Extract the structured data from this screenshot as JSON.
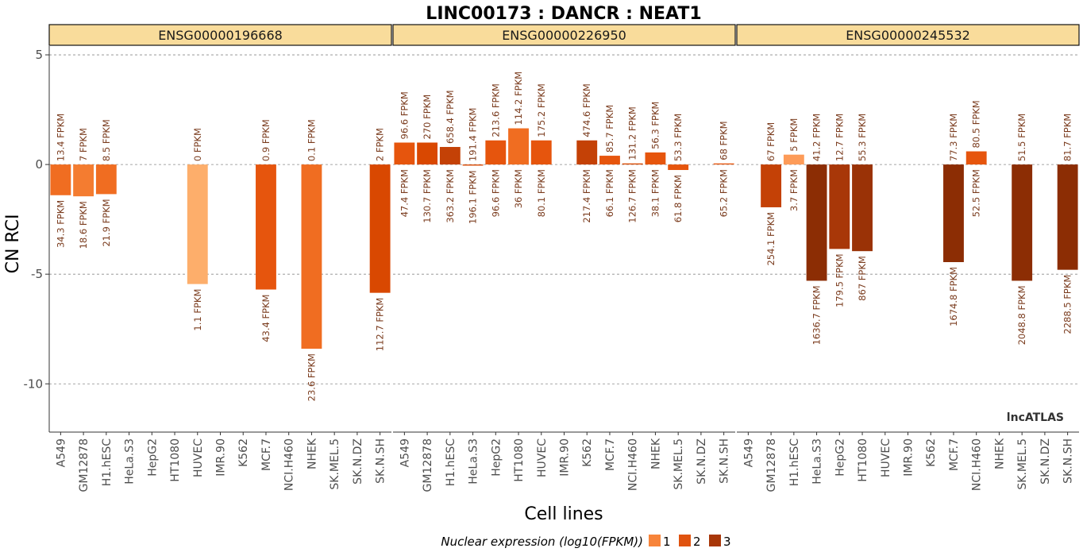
{
  "title": "LINC00173 : DANCR : NEAT1",
  "ylabel": "CN RCI",
  "xlabel": "Cell lines",
  "watermark": "lncATLAS",
  "legend": {
    "title": "Nuclear expression (log10(FPKM))",
    "levels": [
      "1",
      "2",
      "3"
    ],
    "colors": {
      "1": "#f7843a",
      "2": "#e0530f",
      "3": "#a83708"
    }
  },
  "chart_data": {
    "type": "bar",
    "ylim": [
      -12.2,
      5.4
    ],
    "yticks": [
      5,
      0,
      -5,
      -10
    ],
    "grid": "dashed horizontal",
    "categories": [
      "A549",
      "GM12878",
      "H1.hESC",
      "HeLa.S3",
      "HepG2",
      "HT1080",
      "HUVEC",
      "IMR.90",
      "K562",
      "MCF.7",
      "NCI.H460",
      "NHEK",
      "SK.MEL.5",
      "SK.N.DZ",
      "SK.N.SH"
    ],
    "panels": [
      {
        "name": "ENSG00000196668",
        "bars": [
          {
            "category": "A549",
            "value": -1.4,
            "color": "#f06d21",
            "top_label": "13.4 FPKM",
            "bottom_label": "34.3 FPKM"
          },
          {
            "category": "GM12878",
            "value": -1.45,
            "color": "#f47c30",
            "top_label": "7 FPKM",
            "bottom_label": "18.6 FPKM"
          },
          {
            "category": "H1.hESC",
            "value": -1.35,
            "color": "#f06d21",
            "top_label": "8.5 FPKM",
            "bottom_label": "21.9 FPKM"
          },
          {
            "category": "HUVEC",
            "value": -5.45,
            "color": "#fdae6b",
            "top_label": "0 FPKM",
            "bottom_label": "1.1 FPKM"
          },
          {
            "category": "MCF.7",
            "value": -5.7,
            "color": "#e6550d",
            "top_label": "0.9 FPKM",
            "bottom_label": "43.4 FPKM"
          },
          {
            "category": "NHEK",
            "value": -8.4,
            "color": "#f06d21",
            "top_label": "0.1 FPKM",
            "bottom_label": "23.6 FPKM"
          },
          {
            "category": "SK.N.SH",
            "value": -5.85,
            "color": "#d94801",
            "top_label": "2 FPKM",
            "bottom_label": "112.7 FPKM"
          }
        ]
      },
      {
        "name": "ENSG00000226950",
        "bars": [
          {
            "category": "A549",
            "value": 1.0,
            "color": "#e6550d",
            "top_label": "96.6 FPKM",
            "bottom_label": "47.4 FPKM"
          },
          {
            "category": "GM12878",
            "value": 1.0,
            "color": "#d94801",
            "top_label": "270 FPKM",
            "bottom_label": "130.7 FPKM"
          },
          {
            "category": "H1.hESC",
            "value": 0.8,
            "color": "#c44106",
            "top_label": "658.4 FPKM",
            "bottom_label": "363.2 FPKM"
          },
          {
            "category": "HeLa.S3",
            "value": -0.05,
            "color": "#d94801",
            "top_label": "191.4 FPKM",
            "bottom_label": "196.1 FPKM"
          },
          {
            "category": "HepG2",
            "value": 1.1,
            "color": "#e6550d",
            "top_label": "213.6 FPKM",
            "bottom_label": "96.6 FPKM"
          },
          {
            "category": "HT1080",
            "value": 1.65,
            "color": "#f06d21",
            "top_label": "114.2 FPKM",
            "bottom_label": "36 FPKM"
          },
          {
            "category": "HUVEC",
            "value": 1.1,
            "color": "#e6550d",
            "top_label": "175.2 FPKM",
            "bottom_label": "80.1 FPKM"
          },
          {
            "category": "K562",
            "value": 1.1,
            "color": "#c44106",
            "top_label": "474.6 FPKM",
            "bottom_label": "217.4 FPKM"
          },
          {
            "category": "MCF.7",
            "value": 0.4,
            "color": "#e6550d",
            "top_label": "85.7 FPKM",
            "bottom_label": "66.1 FPKM"
          },
          {
            "category": "NCI.H460",
            "value": 0.05,
            "color": "#d94801",
            "top_label": "131.2 FPKM",
            "bottom_label": "126.7 FPKM"
          },
          {
            "category": "NHEK",
            "value": 0.55,
            "color": "#e6550d",
            "top_label": "56.3 FPKM",
            "bottom_label": "38.1 FPKM"
          },
          {
            "category": "SK.MEL.5",
            "value": -0.25,
            "color": "#e6550d",
            "top_label": "53.3 FPKM",
            "bottom_label": "61.8 FPKM"
          },
          {
            "category": "SK.N.SH",
            "value": 0.05,
            "color": "#e6550d",
            "top_label": "68 FPKM",
            "bottom_label": "65.2 FPKM"
          }
        ]
      },
      {
        "name": "ENSG00000245532",
        "bars": [
          {
            "category": "GM12878",
            "value": -1.95,
            "color": "#c44106",
            "top_label": "67 FPKM",
            "bottom_label": "254.1 FPKM"
          },
          {
            "category": "H1.hESC",
            "value": 0.45,
            "color": "#fd9b58",
            "top_label": "5 FPKM",
            "bottom_label": "3.7 FPKM"
          },
          {
            "category": "HeLa.S3",
            "value": -5.3,
            "color": "#8c2d04",
            "top_label": "41.2 FPKM",
            "bottom_label": "1636.7 FPKM"
          },
          {
            "category": "HepG2",
            "value": -3.85,
            "color": "#a83708",
            "top_label": "12.7 FPKM",
            "bottom_label": "179.5 FPKM"
          },
          {
            "category": "HT1080",
            "value": -3.95,
            "color": "#9a3206",
            "top_label": "55.3 FPKM",
            "bottom_label": "867 FPKM"
          },
          {
            "category": "MCF.7",
            "value": -4.45,
            "color": "#8c2d04",
            "top_label": "77.3 FPKM",
            "bottom_label": "1674.8 FPKM"
          },
          {
            "category": "NCI.H460",
            "value": 0.6,
            "color": "#e6550d",
            "top_label": "80.5 FPKM",
            "bottom_label": "52.5 FPKM"
          },
          {
            "category": "SK.MEL.5",
            "value": -5.3,
            "color": "#8c2d04",
            "top_label": "51.5 FPKM",
            "bottom_label": "2048.8 FPKM"
          },
          {
            "category": "SK.N.SH",
            "value": -4.8,
            "color": "#8c2d04",
            "top_label": "81.7 FPKM",
            "bottom_label": "2288.5 FPKM"
          }
        ]
      }
    ]
  }
}
